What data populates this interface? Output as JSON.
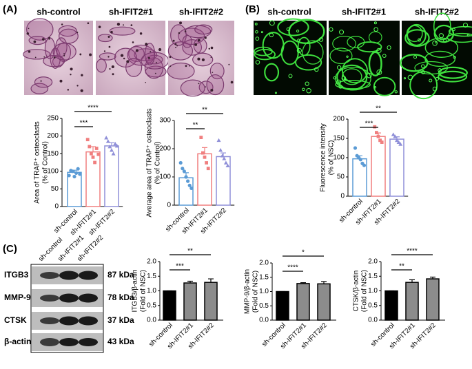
{
  "panel_labels": [
    "(A)",
    "(B)",
    "(C)"
  ],
  "image_labels_a": [
    "sh-control",
    "sh-IFIT2#1",
    "sh-IFIT2#2"
  ],
  "image_labels_b": [
    "sh-control",
    "sh-IFIT2#1",
    "sh-IFIT2#2"
  ],
  "blot": {
    "lanes": [
      "sh-control",
      "sh-IFIT2#1",
      "sh-IFIT2#2"
    ],
    "proteins": [
      {
        "name": "ITGB3",
        "size": "87 kDa"
      },
      {
        "name": "MMP-9",
        "size": "78 kDa"
      },
      {
        "name": "CTSK",
        "size": "37 kDa"
      },
      {
        "name": "β-actin",
        "size": "43 kDa"
      }
    ]
  },
  "chart_data": [
    {
      "type": "bar",
      "ylabel": [
        "Area of TRAP⁺ osteoclasts",
        "(% of Control)"
      ],
      "categories": [
        "sh-control",
        "sh-IFIT2#1",
        "sh-IFIT2#2"
      ],
      "values": [
        97,
        155,
        172
      ],
      "errors": [
        6,
        15,
        9
      ],
      "colors": [
        "#5b9bd5",
        "#f07f7f",
        "#8f8fd8"
      ],
      "filled": false,
      "points": [
        [
          88,
          102,
          100,
          85,
          95,
          107,
          92
        ],
        [
          190,
          170,
          150,
          140,
          125,
          165,
          148
        ],
        [
          195,
          185,
          170,
          160,
          150,
          178,
          172
        ]
      ],
      "ylim": [
        0,
        250
      ],
      "yticks": [
        0,
        50,
        100,
        150,
        200,
        250
      ],
      "comparisons": [
        {
          "from": 0,
          "to": 1,
          "label": "***"
        },
        {
          "from": 0,
          "to": 2,
          "label": "****"
        }
      ]
    },
    {
      "type": "bar",
      "ylabel": [
        "Average area of TRAP⁺ osteoclasts",
        "(% of Control)"
      ],
      "categories": [
        "sh-control",
        "sh-IFIT2#1",
        "sh-IFIT2#2"
      ],
      "values": [
        97,
        182,
        172
      ],
      "errors": [
        18,
        22,
        13
      ],
      "colors": [
        "#5b9bd5",
        "#f07f7f",
        "#8f8fd8"
      ],
      "filled": false,
      "points": [
        [
          150,
          130,
          120,
          100,
          85,
          70,
          60
        ],
        [
          240,
          185,
          170,
          150,
          130
        ],
        [
          230,
          195,
          175,
          165,
          150,
          140
        ]
      ],
      "ylim": [
        0,
        300
      ],
      "yticks": [
        0,
        100,
        200,
        300
      ],
      "comparisons": [
        {
          "from": 0,
          "to": 1,
          "label": "**"
        },
        {
          "from": 0,
          "to": 2,
          "label": "**"
        }
      ]
    },
    {
      "type": "bar",
      "ylabel": [
        "Fluorescence intensity",
        "(% of NSC)"
      ],
      "categories": [
        "sh-control",
        "sh-IFIT2#1",
        "sh-IFIT2#2"
      ],
      "values": [
        97,
        155,
        148
      ],
      "errors": [
        8,
        9,
        6
      ],
      "colors": [
        "#5b9bd5",
        "#f07f7f",
        "#8f8fd8"
      ],
      "filled": false,
      "points": [
        [
          125,
          105,
          100,
          95,
          85,
          80
        ],
        [
          180,
          165,
          155,
          145,
          140
        ],
        [
          160,
          155,
          145,
          140,
          135
        ]
      ],
      "ylim": [
        0,
        200
      ],
      "yticks": [
        0,
        50,
        100,
        150,
        200
      ],
      "comparisons": [
        {
          "from": 0,
          "to": 1,
          "label": "***"
        },
        {
          "from": 0,
          "to": 2,
          "label": "**"
        }
      ]
    },
    {
      "type": "bar",
      "ylabel": [
        "ITGB3/β-actin",
        "(Fold of NSC)"
      ],
      "categories": [
        "sh-control",
        "sh-IFIT2#1",
        "sh-IFIT2#2"
      ],
      "values": [
        1.0,
        1.27,
        1.29
      ],
      "errors": [
        0,
        0.06,
        0.12
      ],
      "colors": [
        "#000000",
        "#8c8c8c",
        "#8c8c8c"
      ],
      "filled": true,
      "ylim": [
        0,
        2
      ],
      "yticks": [
        {
          "value": 0,
          "label": "0.0"
        },
        {
          "value": 0.5,
          "label": "0.5"
        },
        {
          "value": 1,
          "label": "1.0"
        },
        {
          "value": 1.5,
          "label": "1.5"
        },
        {
          "value": 2,
          "label": "2.0"
        }
      ],
      "comparisons": [
        {
          "from": 0,
          "to": 1,
          "label": "***"
        },
        {
          "from": 0,
          "to": 2,
          "label": "**"
        }
      ]
    },
    {
      "type": "bar",
      "ylabel": [
        "MMP-9/β-actin",
        "(Fold of NSC)"
      ],
      "categories": [
        "sh-control",
        "sh-IFIT2#1",
        "sh-IFIT2#2"
      ],
      "values": [
        1.0,
        1.28,
        1.27
      ],
      "errors": [
        0,
        0.03,
        0.08
      ],
      "colors": [
        "#000000",
        "#8c8c8c",
        "#8c8c8c"
      ],
      "filled": true,
      "ylim": [
        0,
        2
      ],
      "yticks": [
        {
          "value": 0,
          "label": "0.0"
        },
        {
          "value": 0.5,
          "label": "0.5"
        },
        {
          "value": 1,
          "label": "1.0"
        },
        {
          "value": 1.5,
          "label": "1.5"
        },
        {
          "value": 2,
          "label": "2.0"
        }
      ],
      "comparisons": [
        {
          "from": 0,
          "to": 1,
          "label": "****"
        },
        {
          "from": 0,
          "to": 2,
          "label": "*"
        }
      ]
    },
    {
      "type": "bar",
      "ylabel": [
        "CTSK/β-actin",
        "(Fold of NSC)"
      ],
      "categories": [
        "sh-control",
        "sh-IFIT2#1",
        "sh-IFIT2#2"
      ],
      "values": [
        1.0,
        1.29,
        1.41
      ],
      "errors": [
        0,
        0.09,
        0.06
      ],
      "colors": [
        "#000000",
        "#8c8c8c",
        "#8c8c8c"
      ],
      "filled": true,
      "ylim": [
        0,
        2
      ],
      "yticks": [
        {
          "value": 0,
          "label": "0.0"
        },
        {
          "value": 0.5,
          "label": "0.5"
        },
        {
          "value": 1,
          "label": "1.0"
        },
        {
          "value": 1.5,
          "label": "1.5"
        },
        {
          "value": 2,
          "label": "2.0"
        }
      ],
      "comparisons": [
        {
          "from": 0,
          "to": 1,
          "label": "**"
        },
        {
          "from": 0,
          "to": 2,
          "label": "****"
        }
      ]
    }
  ]
}
